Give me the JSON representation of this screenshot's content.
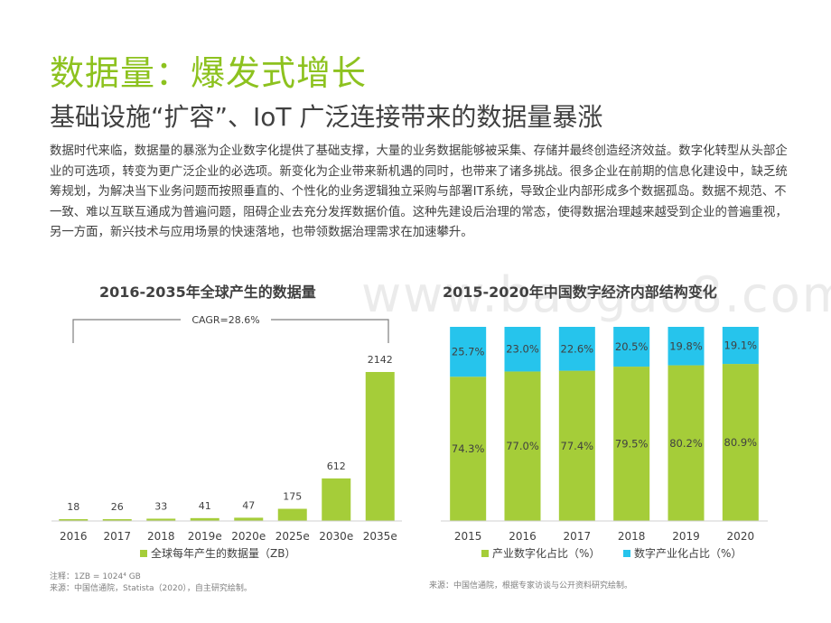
{
  "header": {
    "title": "数据量：爆发式增长",
    "subtitle": "基础设施“扩容”、IoT 广泛连接带来的数据量暴涨"
  },
  "body_text": "数据时代来临，数据量的暴涨为企业数字化提供了基础支撑，大量的业务数据能够被采集、存储并最终创造经济效益。数字化转型从头部企业的可选项，转变为更广泛企业的必选项。新变化为企业带来新机遇的同时，也带来了诸多挑战。很多企业在前期的信息化建设中，缺乏统筹规划，为解决当下业务问题而按照垂直的、个性化的业务逻辑独立采购与部署IT系统，导致企业内部形成多个数据孤岛。数据不规范、不一致、难以互联互通成为普遍问题，阻碍企业去充分发挥数据价值。这种先建设后治理的常态，使得数据治理越来越受到企业的普遍重视，另一方面，新兴技术与应用场景的快速落地，也带领数据治理需求在加速攀升。",
  "watermark": "www.baogao8.com",
  "colors": {
    "green": "#a5cd39",
    "blue": "#26c4ec",
    "title_green": "#8dc21f"
  },
  "chart_data": [
    {
      "type": "bar",
      "title": "2016-2035年全球产生的数据量",
      "categories": [
        "2016",
        "2017",
        "2018",
        "2019e",
        "2020e",
        "2025e",
        "2030e",
        "2035e"
      ],
      "series": [
        {
          "name": "全球每年产生的数据量（ZB）",
          "values": [
            18,
            26,
            33,
            41,
            47,
            175,
            612,
            2142
          ]
        }
      ],
      "annotation": "CAGR=28.6%",
      "ylim": [
        0,
        2142
      ],
      "legend": "bottom"
    },
    {
      "type": "bar",
      "stacked": true,
      "percent": true,
      "title": "2015-2020年中国数字经济内部结构变化",
      "categories": [
        "2015",
        "2016",
        "2017",
        "2018",
        "2019",
        "2020"
      ],
      "series": [
        {
          "name": "产业数字化占比（%）",
          "values": [
            74.3,
            77.0,
            77.4,
            79.5,
            80.2,
            80.9
          ],
          "labels": [
            "74.3%",
            "77.0%",
            "77.4%",
            "79.5%",
            "80.2%",
            "80.9%"
          ]
        },
        {
          "name": "数字产业化占比（%）",
          "values": [
            25.7,
            23.0,
            22.6,
            20.5,
            19.8,
            19.1
          ],
          "labels": [
            "25.7%",
            "23.0%",
            "22.6%",
            "20.5%",
            "19.8%",
            "19.1%"
          ]
        }
      ],
      "ylim": [
        0,
        100
      ],
      "legend": "bottom"
    }
  ],
  "notes": {
    "left_note": "注释：1ZB = 1024⁴ GB",
    "left_source": "来源：中国信通院，Statista（2020），自主研究绘制。",
    "right_source": "来源：中国信通院，根据专家访谈与公开资料研究绘制。"
  }
}
